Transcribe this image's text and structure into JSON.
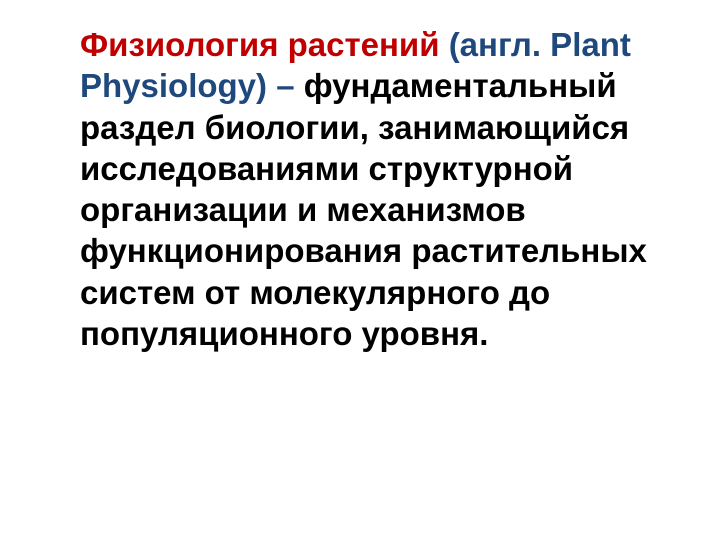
{
  "definition": {
    "title": "Физиология растений",
    "english": "(англ. Plant Physiology) – ",
    "body": "фундаментальный раздел биологии, занимающийся исследованиями структурной организации и механизмов функционирования растительных систем от молекулярного до популяционного уровня."
  },
  "style": {
    "title_color": "#c00000",
    "english_color": "#1f497d",
    "body_color": "#000000",
    "background_color": "#ffffff",
    "font_size_pt": 25,
    "font_weight": "bold"
  }
}
